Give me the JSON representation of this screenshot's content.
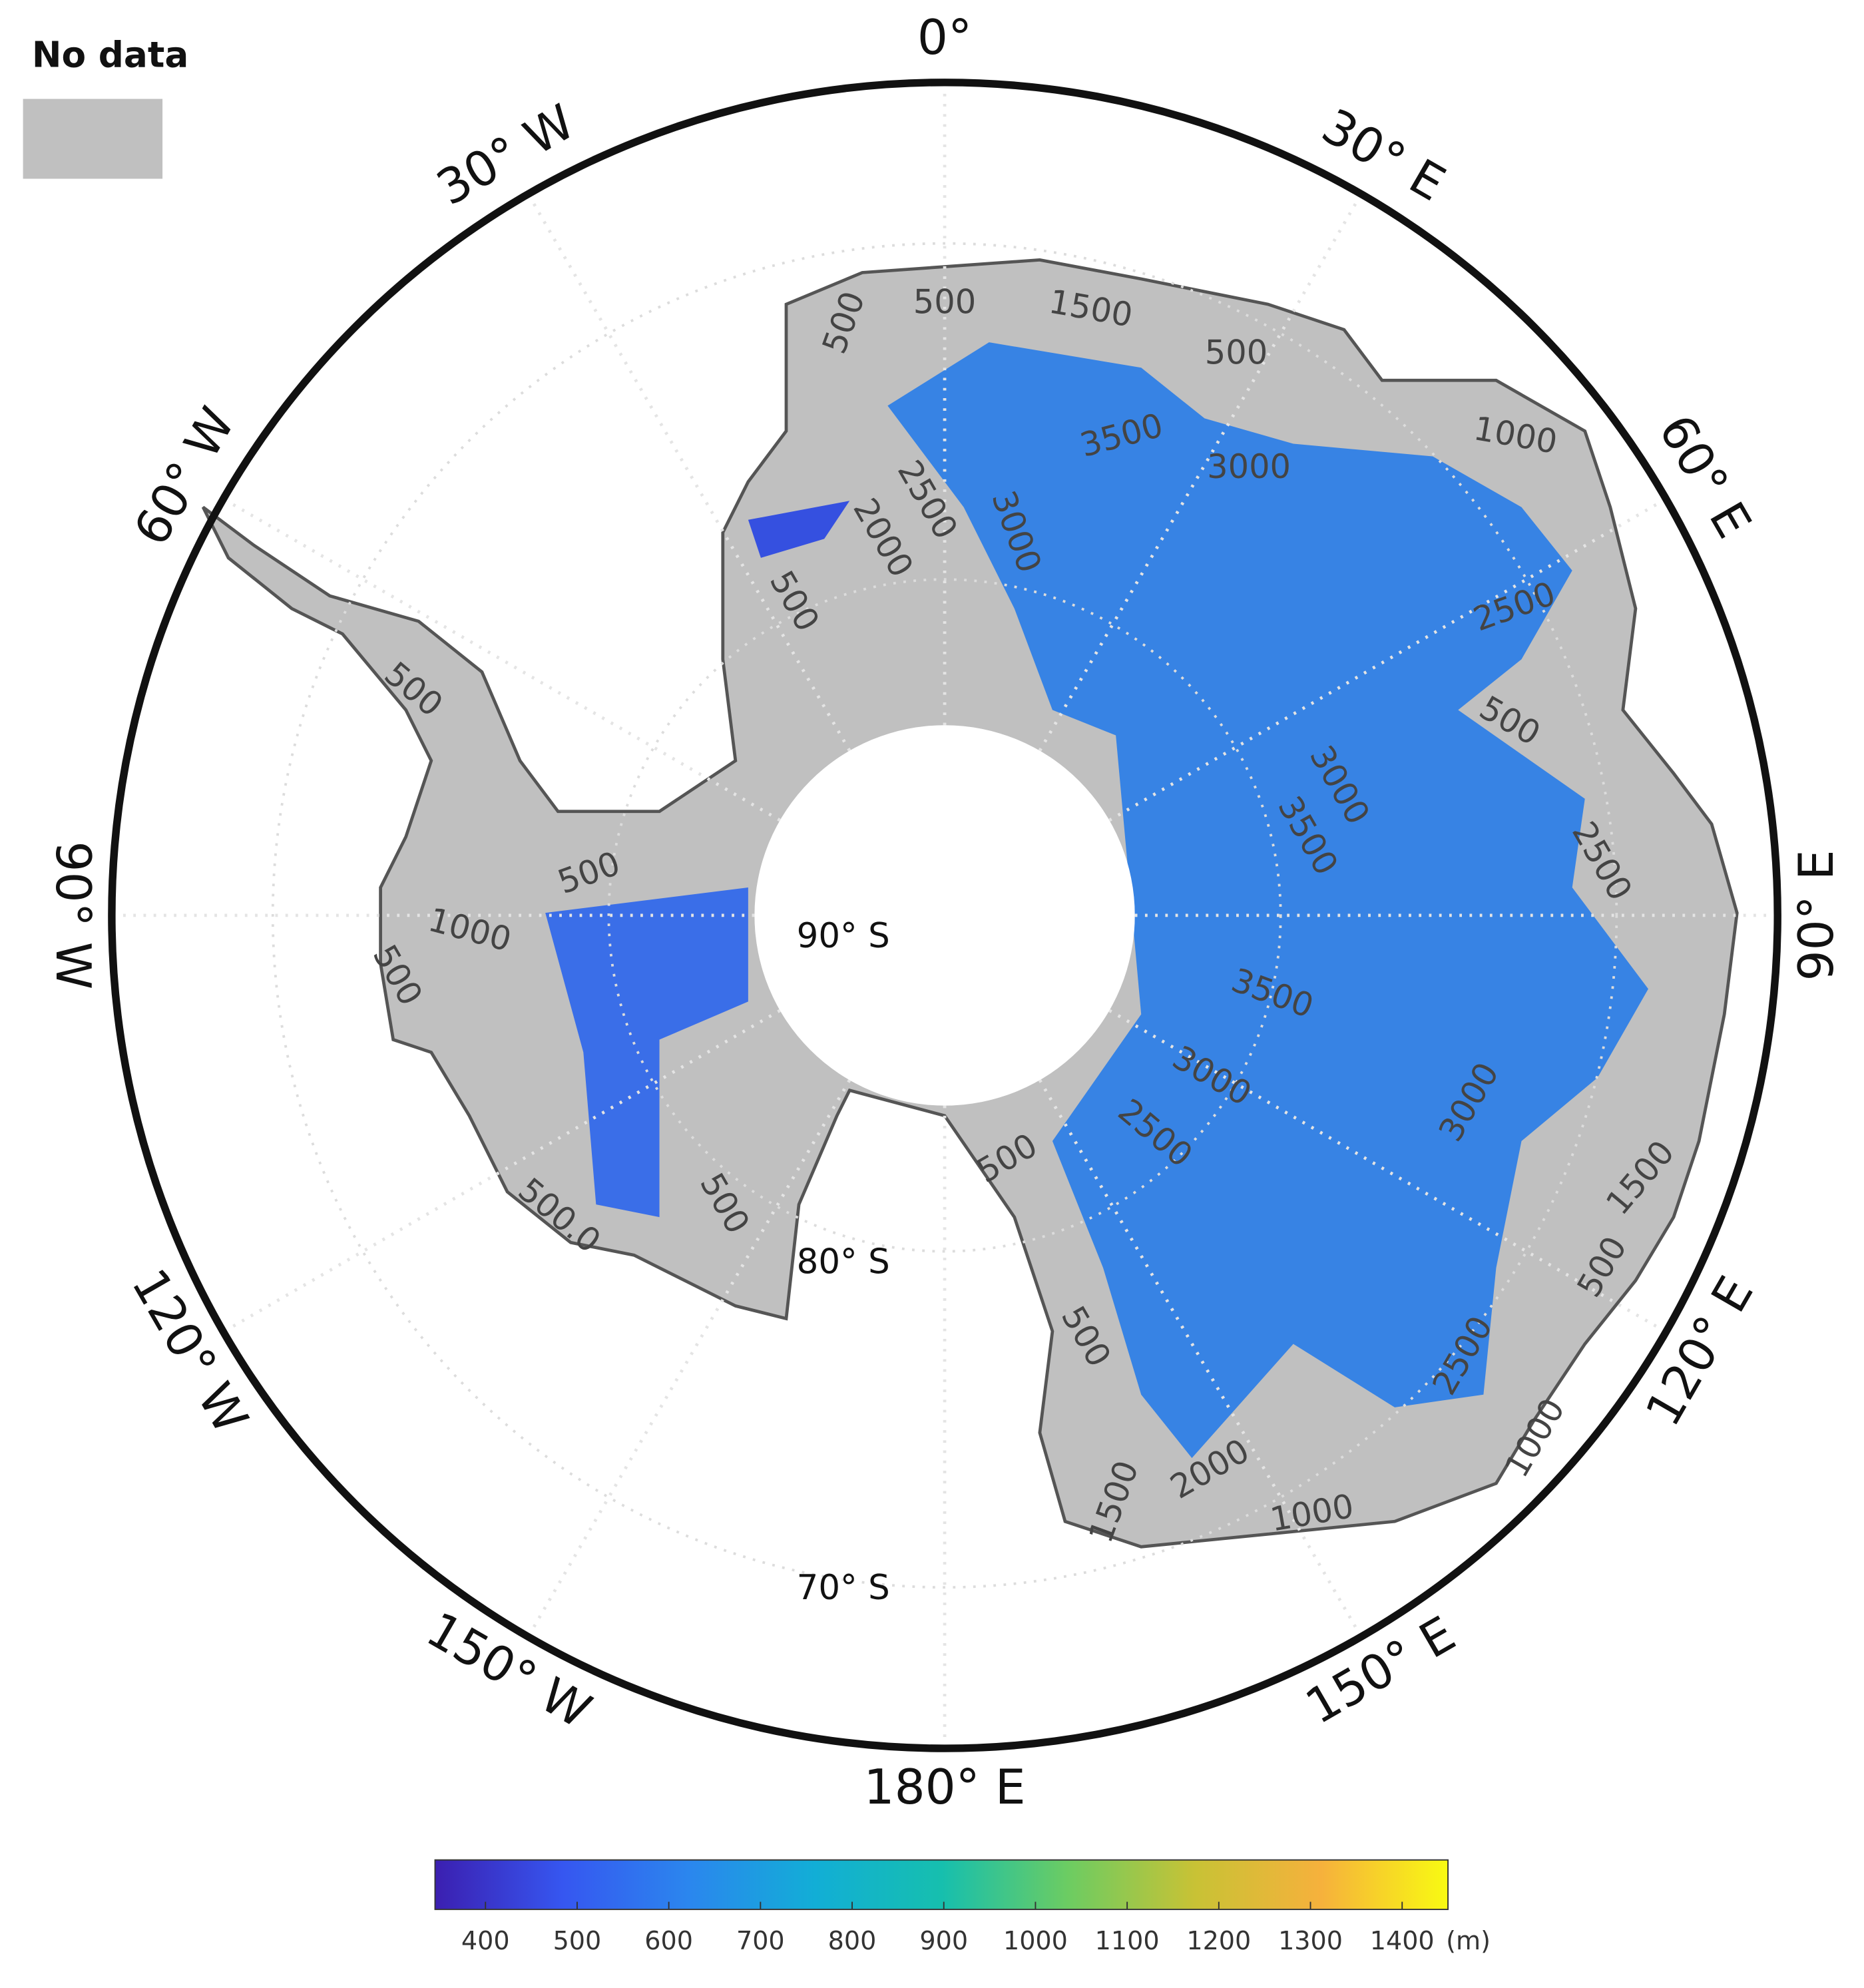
{
  "map": {
    "no_data": {
      "label": "No data",
      "color": "#c0c0c0"
    },
    "meridians": [
      {
        "value": 0,
        "label": "0°"
      },
      {
        "value": 30,
        "label": "30° E"
      },
      {
        "value": 60,
        "label": "60° E"
      },
      {
        "value": 90,
        "label": "90° E"
      },
      {
        "value": 120,
        "label": "120° E"
      },
      {
        "value": 150,
        "label": "150° E"
      },
      {
        "value": 180,
        "label": "180° E"
      },
      {
        "value": -150,
        "label": "150° W"
      },
      {
        "value": -120,
        "label": "120° W"
      },
      {
        "value": -90,
        "label": "90° W"
      },
      {
        "value": -60,
        "label": "60° W"
      },
      {
        "value": -30,
        "label": "30° W"
      }
    ],
    "parallels": [
      {
        "value": -90,
        "label": "90° S"
      },
      {
        "value": -80,
        "label": "80° S"
      },
      {
        "value": -70,
        "label": "70° S"
      }
    ],
    "contour_labels": [
      "500",
      "500",
      "1500",
      "500",
      "1000",
      "3500",
      "3000",
      "2500",
      "2000",
      "3000",
      "500",
      "2500",
      "500",
      "3000",
      "3500",
      "2500",
      "500",
      "500",
      "1000",
      "500",
      "3500",
      "3000",
      "2500",
      "3000",
      "1500",
      "500",
      "500",
      "500",
      "500.0",
      "500",
      "2500",
      "1000",
      "2000",
      "1500",
      "1000"
    ],
    "colorbar": {
      "range": [
        345,
        1450
      ],
      "ticks": [
        400,
        500,
        600,
        700,
        800,
        900,
        1000,
        1100,
        1200,
        1300,
        1400
      ],
      "unit": "(m)",
      "colors": [
        "#3b1fb0",
        "#3656f0",
        "#2b86ee",
        "#12aed6",
        "#16bfae",
        "#6ccc62",
        "#c8c235",
        "#f6b13c",
        "#f8fa12"
      ]
    }
  }
}
